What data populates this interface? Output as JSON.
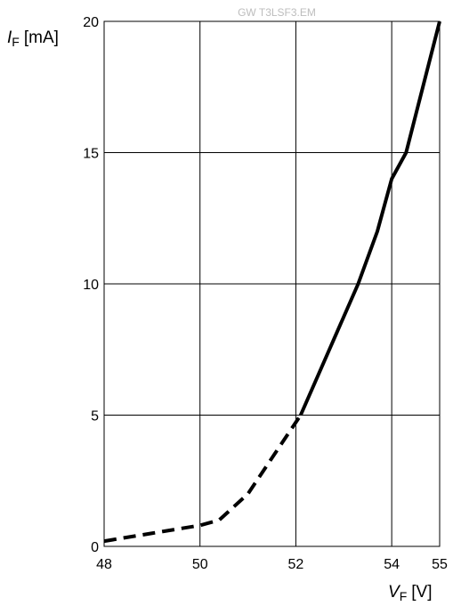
{
  "watermark": "GW T3LSF3.EM",
  "chart_data": {
    "type": "line",
    "xlim": [
      48,
      55
    ],
    "ylim": [
      0,
      20
    ],
    "x_ticks": [
      48,
      50,
      52,
      54,
      55
    ],
    "y_ticks": [
      0,
      5,
      10,
      15,
      20
    ],
    "x_gridlines": [
      50,
      52,
      54,
      55
    ],
    "y_gridlines": [
      5,
      10,
      15,
      20
    ],
    "grid": true,
    "xlabel": {
      "main": "V",
      "sub": "F",
      "unit": "[V]"
    },
    "ylabel": {
      "main": "I",
      "sub": "F",
      "unit": "[mA]"
    },
    "series": [
      {
        "style": "dashed",
        "color": "#000000",
        "x": [
          48.0,
          49.0,
          50.0,
          50.4,
          51.0,
          52.1
        ],
        "y": [
          0.2,
          0.5,
          0.8,
          1.0,
          2.0,
          5.0
        ]
      },
      {
        "style": "solid",
        "color": "#000000",
        "x": [
          52.1,
          52.7,
          53.3,
          53.7,
          54.0,
          54.3,
          55.0
        ],
        "y": [
          5.0,
          7.5,
          10.0,
          12.0,
          14.0,
          15.0,
          20.0
        ]
      }
    ]
  }
}
